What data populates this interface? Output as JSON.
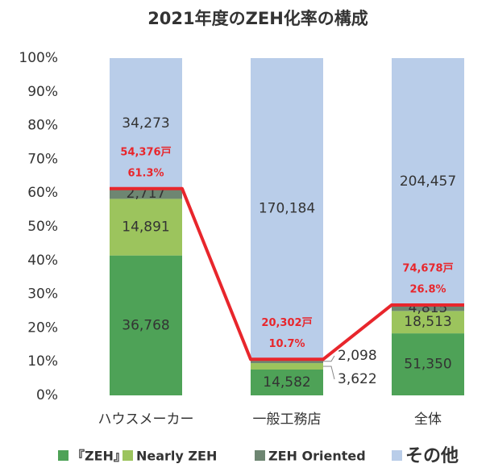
{
  "chart_data": {
    "type": "bar",
    "stacking": "percent",
    "title": "2021年度のZEH化率の構成",
    "categories": [
      "ハウスメーカー",
      "一般工務店",
      "全体"
    ],
    "series": [
      {
        "name": "『ZEH』",
        "color": "#4ea257",
        "values": [
          36768,
          14582,
          51350
        ],
        "value_labels": [
          "36,768",
          "14,582",
          "51,350"
        ]
      },
      {
        "name": "Nearly ZEH",
        "color": "#9cc45d",
        "values": [
          14891,
          3622,
          18513
        ],
        "value_labels": [
          "14,891",
          "3,622",
          "18,513"
        ]
      },
      {
        "name": "ZEH Oriented",
        "color": "#6e8672",
        "values": [
          2717,
          2098,
          4815
        ],
        "value_labels": [
          "2,717",
          "2,098",
          "4,815"
        ]
      },
      {
        "name": "その他",
        "color": "#b9cde9",
        "values": [
          34273,
          170184,
          204457
        ],
        "value_labels": [
          "34,273",
          "170,184",
          "204,457"
        ]
      }
    ],
    "totals": {
      "values": [
        54376,
        20302,
        74678
      ],
      "value_labels": [
        "54,376戸",
        "20,302戸",
        "74,678戸"
      ]
    },
    "rates": {
      "color": "#e8262c",
      "values": [
        61.3,
        10.7,
        26.8
      ],
      "value_labels": [
        "61.3%",
        "10.7%",
        "26.8%"
      ]
    },
    "ylim": [
      0,
      100
    ],
    "yticks": [
      {
        "value": 0,
        "label": "0%"
      },
      {
        "value": 10,
        "label": "10%"
      },
      {
        "value": 20,
        "label": "20%"
      },
      {
        "value": 30,
        "label": "30%"
      },
      {
        "value": 40,
        "label": "40%"
      },
      {
        "value": 50,
        "label": "50%"
      },
      {
        "value": 60,
        "label": "60%"
      },
      {
        "value": 70,
        "label": "70%"
      },
      {
        "value": 80,
        "label": "80%"
      },
      {
        "value": 90,
        "label": "90%"
      },
      {
        "value": 100,
        "label": "100%"
      }
    ],
    "grid": false,
    "legend": "bottom"
  }
}
